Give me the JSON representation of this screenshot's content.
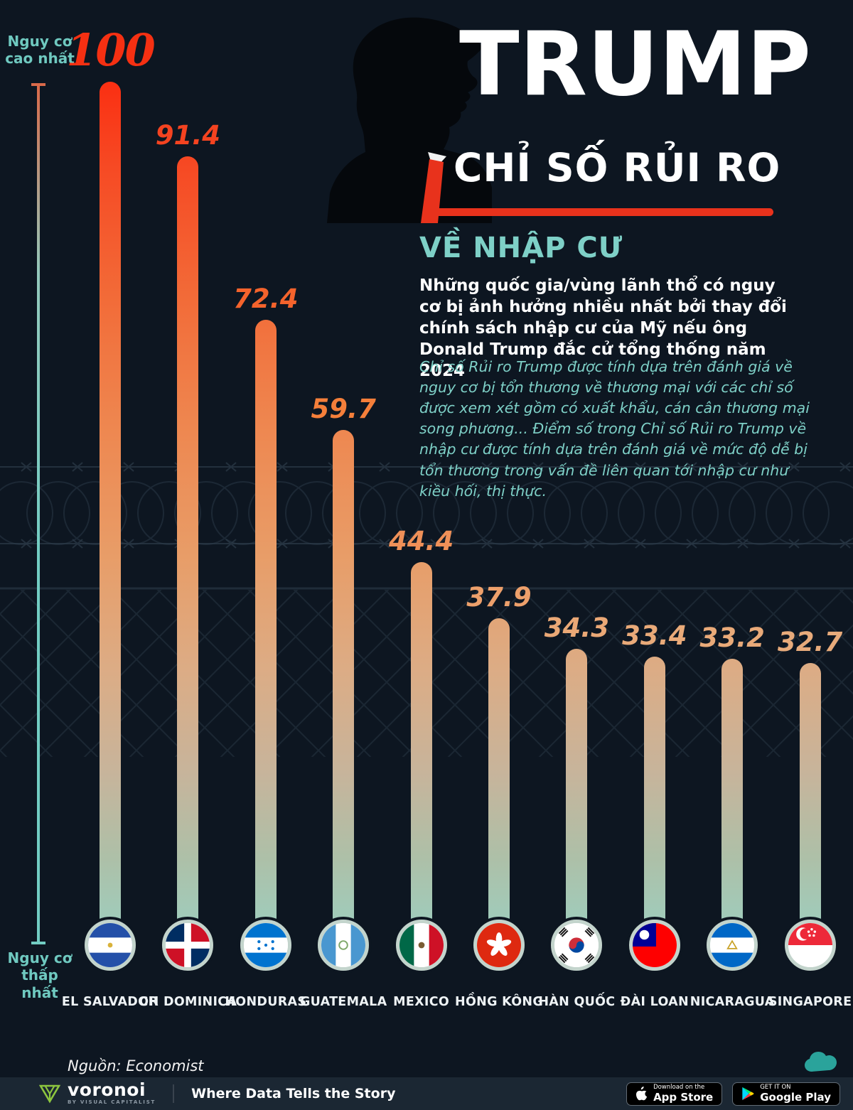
{
  "page": {
    "bg": "#0d1621",
    "title": "TRUMP",
    "subtitle": "CHỈ SỐ RỦI RO",
    "topic": "VỀ NHẬP CƯ",
    "intro_bold": "Những quốc gia/vùng lãnh thổ có nguy cơ bị ảnh hưởng nhiều nhất bởi thay đổi chính sách nhập cư của Mỹ nếu ông Donald Trump đắc cử tổng thống năm 2024",
    "intro_note": "Chỉ số Rủi ro Trump được tính dựa trên đánh giá về nguy cơ bị tổn thương về thương mại với các chỉ số được xem xét gồm có xuất khẩu, cán cân thương mại song phương... Điểm số trong Chỉ số Rủi ro Trump về nhập cư được tính dựa trên đánh giá về mức độ dễ bị tổn thương trong vấn đề liên quan tới nhập cư như kiều hối, thị thực.",
    "source": "Nguồn: Economist",
    "accent_red": "#e8321c",
    "accent_teal": "#7ed0c7"
  },
  "axis": {
    "top_label": "Nguy cơ cao nhất",
    "bottom_label": "Nguy cơ thấp nhất"
  },
  "chart_data": {
    "type": "bar",
    "orientation": "vertical",
    "title": "Chỉ số Rủi ro Trump về nhập cư",
    "categories": [
      "EL SALVADOR",
      "CH DOMINICA",
      "HONDURAS",
      "GUATEMALA",
      "MEXICO",
      "HỒNG KÔNG",
      "HÀN QUỐC",
      "ĐÀI LOAN",
      "NICARAGUA",
      "SINGAPORE"
    ],
    "values": [
      100,
      91.4,
      72.4,
      59.7,
      44.4,
      37.9,
      34.3,
      33.4,
      33.2,
      32.7
    ],
    "value_labels": [
      "100",
      "91.4",
      "72.4",
      "59.7",
      "44.4",
      "37.9",
      "34.3",
      "33.4",
      "33.2",
      "32.7"
    ],
    "label_colors": [
      "#f53012",
      "#f44320",
      "#f4632c",
      "#f57f3a",
      "#ef9058",
      "#eda06b",
      "#eaa876",
      "#e9aa79",
      "#e9aa79",
      "#e8ab7b"
    ],
    "flags": [
      "el-salvador",
      "dominican-republic",
      "honduras",
      "guatemala",
      "mexico",
      "hong-kong",
      "south-korea",
      "taiwan",
      "nicaragua",
      "singapore"
    ],
    "ylim": [
      0,
      100
    ],
    "grid": false,
    "legend_position": "none"
  },
  "icons": {
    "header_figure": "trump-silhouette-icon",
    "brand_glyph": "voronoi-triangle-icon",
    "mascot": "cloud-mascot-icon",
    "appstore_glyph": "apple-icon",
    "gplay_glyph": "google-play-icon"
  },
  "footer": {
    "brand": "voronoi",
    "brand_sub": "BY VISUAL CAPITALIST",
    "tagline": "Where Data Tells the Story",
    "appstore_small": "Download on the",
    "appstore_big": "App Store",
    "gplay_small": "GET IT ON",
    "gplay_big": "Google Play"
  }
}
